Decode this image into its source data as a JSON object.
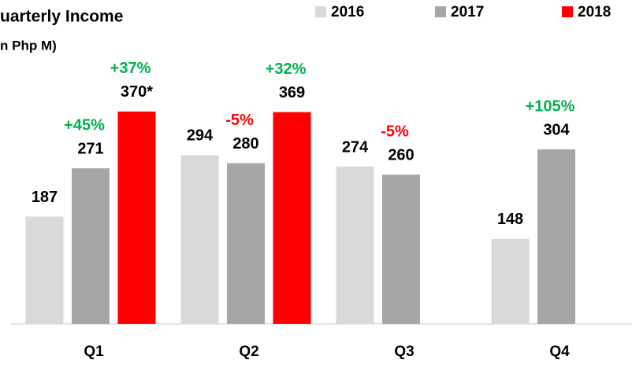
{
  "chart_data": {
    "type": "bar",
    "title": "uarterly Income",
    "subtitle": "n Php M)",
    "categories": [
      "Q1",
      "Q2",
      "Q3",
      "Q4"
    ],
    "series": [
      {
        "name": "2016",
        "color": "#d9d9d9",
        "values": [
          187,
          294,
          274,
          148
        ]
      },
      {
        "name": "2017",
        "color": "#a6a6a6",
        "values": [
          271,
          280,
          260,
          304
        ],
        "change_labels": [
          "+45%",
          "-5%",
          "-5%",
          "+105%"
        ],
        "change_colors": [
          "#00b050",
          "#ff0000",
          "#ff0000",
          "#00b050"
        ]
      },
      {
        "name": "2018",
        "color": "#ff0000",
        "values": [
          370,
          369,
          null,
          null
        ],
        "value_labels": [
          "370*",
          "369",
          null,
          null
        ],
        "change_labels": [
          "+37%",
          "+32%",
          null,
          null
        ],
        "change_colors": [
          "#00b050",
          "#00b050",
          null,
          null
        ]
      }
    ],
    "ylim": [
      0,
      400
    ],
    "legend": "top-right"
  }
}
